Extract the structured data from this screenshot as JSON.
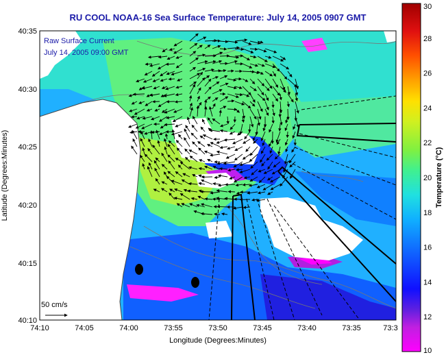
{
  "title": "RU COOL  NOAA-16  Sea Surface Temperature:  July 14, 2005 0907 GMT",
  "annotation": {
    "line1": "Raw Surface Current",
    "line2": "July 14, 2005 09:00 GMT"
  },
  "scale_label": "50 cm/s",
  "x_axis": {
    "label": "Longitude (Degrees:Minutes)",
    "ticks": [
      "74:10",
      "74:05",
      "74:00",
      "73:55",
      "73:50",
      "73:45",
      "73:40",
      "73:35",
      "73:3"
    ]
  },
  "y_axis": {
    "label": "Latitude (Degrees:Minutes)",
    "ticks": [
      "40:35",
      "40:30",
      "40:25",
      "40:20",
      "40:15",
      "40:10"
    ]
  },
  "colorbar": {
    "label": "Temperature (°C)",
    "min": 10,
    "max": 30,
    "ticks": [
      "30",
      "28",
      "26",
      "24",
      "22",
      "20",
      "18",
      "16",
      "14",
      "12",
      "10"
    ]
  },
  "colors": {
    "title": "#1a1aa8",
    "land": "#ffffff",
    "cloud": "#ffffff"
  }
}
